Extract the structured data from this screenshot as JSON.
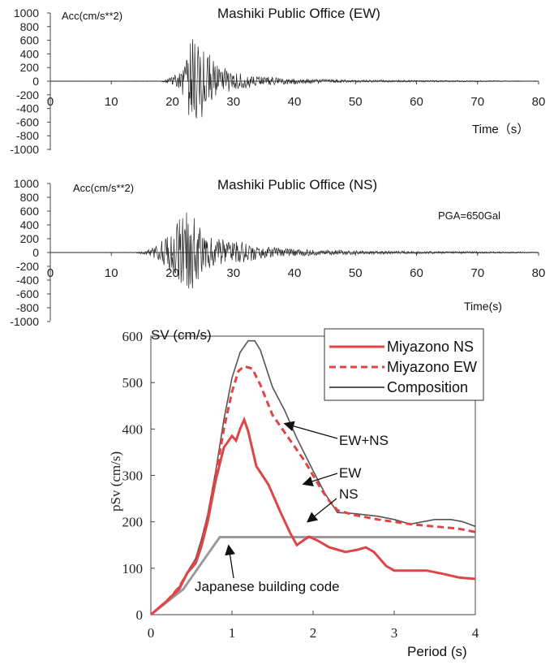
{
  "chart_data": [
    {
      "type": "line",
      "title": "Mashiki Public Office (EW)",
      "ylabel": "Acc(cm/s**2)",
      "xlabel": "Time（s）",
      "xlim": [
        0,
        80
      ],
      "ylim": [
        -1000,
        1000
      ],
      "x_ticks": [
        "0",
        "10",
        "20",
        "30",
        "40",
        "50",
        "60",
        "70",
        "80"
      ],
      "y_ticks": [
        "1000",
        "800",
        "600",
        "400",
        "200",
        "0",
        "-200",
        "-400",
        "-600",
        "-800",
        "-1000"
      ],
      "annotation": "",
      "series": [
        {
          "values_envelope": [
            [
              0,
              0
            ],
            [
              18,
              5
            ],
            [
              19,
              25
            ],
            [
              20,
              80
            ],
            [
              21,
              150
            ],
            [
              22,
              250
            ],
            [
              23,
              650
            ],
            [
              24,
              820
            ],
            [
              25,
              520
            ],
            [
              26,
              400
            ],
            [
              27,
              300
            ],
            [
              28,
              220
            ],
            [
              30,
              150
            ],
            [
              33,
              100
            ],
            [
              36,
              70
            ],
            [
              40,
              40
            ],
            [
              45,
              30
            ],
            [
              50,
              20
            ],
            [
              60,
              15
            ],
            [
              70,
              10
            ],
            [
              80,
              5
            ]
          ],
          "peak_max": 820,
          "peak_min": -750
        }
      ]
    },
    {
      "type": "line",
      "title": "Mashiki Public Office (NS)",
      "ylabel": "Acc(cm/s**2)",
      "xlabel": "Time(s)",
      "xlim": [
        0,
        80
      ],
      "ylim": [
        -1000,
        1000
      ],
      "x_ticks": [
        "0",
        "10",
        "20",
        "30",
        "40",
        "50",
        "60",
        "70",
        "80"
      ],
      "y_ticks": [
        "1000",
        "800",
        "600",
        "400",
        "200",
        "0",
        "-200",
        "-400",
        "-600",
        "-800",
        "-1000"
      ],
      "annotation": "PGA=650Gal",
      "series": [
        {
          "values_envelope": [
            [
              0,
              0
            ],
            [
              14,
              5
            ],
            [
              16,
              40
            ],
            [
              18,
              150
            ],
            [
              20,
              350
            ],
            [
              21,
              560
            ],
            [
              22,
              620
            ],
            [
              23,
              600
            ],
            [
              24,
              500
            ],
            [
              25,
              350
            ],
            [
              26,
              250
            ],
            [
              28,
              200
            ],
            [
              30,
              180
            ],
            [
              32,
              150
            ],
            [
              35,
              90
            ],
            [
              40,
              60
            ],
            [
              45,
              40
            ],
            [
              50,
              30
            ],
            [
              60,
              20
            ],
            [
              70,
              15
            ],
            [
              80,
              8
            ]
          ],
          "peak_max": 620,
          "peak_min": -650
        }
      ]
    },
    {
      "type": "line",
      "title": "",
      "ylabel": "pSv (cm/s)",
      "ylabel_top": "SV (cm/s)",
      "xlabel": "Period (s)",
      "xlim": [
        0,
        4
      ],
      "ylim": [
        0,
        600
      ],
      "x_ticks": [
        "0",
        "1",
        "2",
        "3",
        "4"
      ],
      "y_ticks": [
        "600",
        "500",
        "400",
        "300",
        "200",
        "100",
        "0"
      ],
      "legend_position": "top-right",
      "series": [
        {
          "name": "Miyazono NS",
          "color": "#e04545",
          "style": "solid",
          "points": [
            [
              0,
              0
            ],
            [
              0.2,
              30
            ],
            [
              0.35,
              55
            ],
            [
              0.45,
              90
            ],
            [
              0.55,
              110
            ],
            [
              0.62,
              145
            ],
            [
              0.7,
              200
            ],
            [
              0.8,
              290
            ],
            [
              0.9,
              360
            ],
            [
              1.0,
              385
            ],
            [
              1.05,
              375
            ],
            [
              1.1,
              400
            ],
            [
              1.15,
              420
            ],
            [
              1.2,
              395
            ],
            [
              1.3,
              320
            ],
            [
              1.45,
              280
            ],
            [
              1.6,
              220
            ],
            [
              1.72,
              175
            ],
            [
              1.8,
              150
            ],
            [
              1.88,
              160
            ],
            [
              1.95,
              168
            ],
            [
              2.05,
              160
            ],
            [
              2.2,
              145
            ],
            [
              2.4,
              135
            ],
            [
              2.55,
              140
            ],
            [
              2.65,
              145
            ],
            [
              2.75,
              135
            ],
            [
              2.9,
              105
            ],
            [
              3.0,
              95
            ],
            [
              3.2,
              95
            ],
            [
              3.4,
              95
            ],
            [
              3.6,
              88
            ],
            [
              3.8,
              80
            ],
            [
              4.0,
              77
            ]
          ]
        },
        {
          "name": "Miyazono EW",
          "color": "#e04545",
          "style": "dashed",
          "points": [
            [
              0,
              0
            ],
            [
              0.2,
              30
            ],
            [
              0.35,
              60
            ],
            [
              0.45,
              90
            ],
            [
              0.55,
              115
            ],
            [
              0.62,
              150
            ],
            [
              0.7,
              210
            ],
            [
              0.8,
              300
            ],
            [
              0.9,
              400
            ],
            [
              1.0,
              480
            ],
            [
              1.08,
              525
            ],
            [
              1.15,
              535
            ],
            [
              1.25,
              530
            ],
            [
              1.35,
              495
            ],
            [
              1.5,
              430
            ],
            [
              1.7,
              380
            ],
            [
              1.9,
              330
            ],
            [
              2.1,
              270
            ],
            [
              2.2,
              245
            ],
            [
              2.3,
              225
            ],
            [
              2.5,
              215
            ],
            [
              2.8,
              205
            ],
            [
              3.0,
              200
            ],
            [
              3.2,
              195
            ],
            [
              3.5,
              190
            ],
            [
              3.8,
              185
            ],
            [
              4.0,
              178
            ]
          ]
        },
        {
          "name": "Composition",
          "color": "#555555",
          "style": "solid",
          "points": [
            [
              0,
              0
            ],
            [
              0.2,
              30
            ],
            [
              0.35,
              60
            ],
            [
              0.45,
              92
            ],
            [
              0.55,
              120
            ],
            [
              0.62,
              160
            ],
            [
              0.7,
              215
            ],
            [
              0.8,
              310
            ],
            [
              0.9,
              420
            ],
            [
              1.0,
              510
            ],
            [
              1.1,
              565
            ],
            [
              1.2,
              590
            ],
            [
              1.28,
              590
            ],
            [
              1.35,
              570
            ],
            [
              1.5,
              490
            ],
            [
              1.65,
              440
            ],
            [
              1.8,
              380
            ],
            [
              2.0,
              310
            ],
            [
              2.15,
              260
            ],
            [
              2.3,
              220
            ],
            [
              2.5,
              218
            ],
            [
              2.8,
              212
            ],
            [
              3.0,
              205
            ],
            [
              3.2,
              195
            ],
            [
              3.5,
              205
            ],
            [
              3.7,
              205
            ],
            [
              3.85,
              200
            ],
            [
              4.0,
              190
            ]
          ]
        },
        {
          "name": "",
          "color": "#9a9a9a",
          "style": "solid",
          "points": [
            [
              0,
              0
            ],
            [
              0.4,
              55
            ],
            [
              0.7,
              130
            ],
            [
              0.85,
              167
            ],
            [
              1.0,
              167
            ],
            [
              2.0,
              167
            ],
            [
              3.0,
              167
            ],
            [
              4.0,
              167
            ]
          ]
        }
      ],
      "annotations": [
        "EW+NS",
        "EW",
        "NS",
        "Japanese building code"
      ]
    }
  ]
}
